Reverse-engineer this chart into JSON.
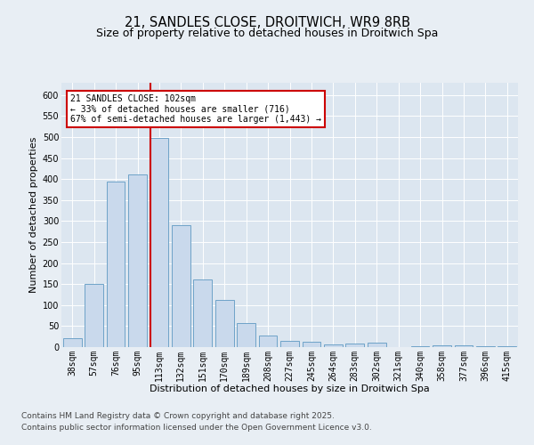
{
  "title_line1": "21, SANDLES CLOSE, DROITWICH, WR9 8RB",
  "title_line2": "Size of property relative to detached houses in Droitwich Spa",
  "xlabel": "Distribution of detached houses by size in Droitwich Spa",
  "ylabel": "Number of detached properties",
  "categories": [
    "38sqm",
    "57sqm",
    "76sqm",
    "95sqm",
    "113sqm",
    "132sqm",
    "151sqm",
    "170sqm",
    "189sqm",
    "208sqm",
    "227sqm",
    "245sqm",
    "264sqm",
    "283sqm",
    "302sqm",
    "321sqm",
    "340sqm",
    "358sqm",
    "377sqm",
    "396sqm",
    "415sqm"
  ],
  "values": [
    22,
    150,
    393,
    410,
    497,
    290,
    160,
    112,
    57,
    28,
    15,
    12,
    7,
    9,
    10,
    0,
    3,
    4,
    5,
    3,
    3
  ],
  "bar_color": "#c9d9ec",
  "bar_edge_color": "#6ea3c8",
  "vline_color": "#cc0000",
  "vline_x_idx": 4,
  "annotation_title": "21 SANDLES CLOSE: 102sqm",
  "annotation_line2": "← 33% of detached houses are smaller (716)",
  "annotation_line3": "67% of semi-detached houses are larger (1,443) →",
  "ylim_max": 630,
  "ytick_max": 600,
  "ytick_step": 50,
  "bg_color": "#e8eef4",
  "plot_bg_color": "#dce6f0",
  "title1_fontsize": 10.5,
  "title2_fontsize": 9,
  "axis_label_fontsize": 8,
  "tick_fontsize": 7,
  "annot_fontsize": 7,
  "footnote_fontsize": 6.5,
  "footnote_line1": "Contains HM Land Registry data © Crown copyright and database right 2025.",
  "footnote_line2": "Contains public sector information licensed under the Open Government Licence v3.0."
}
